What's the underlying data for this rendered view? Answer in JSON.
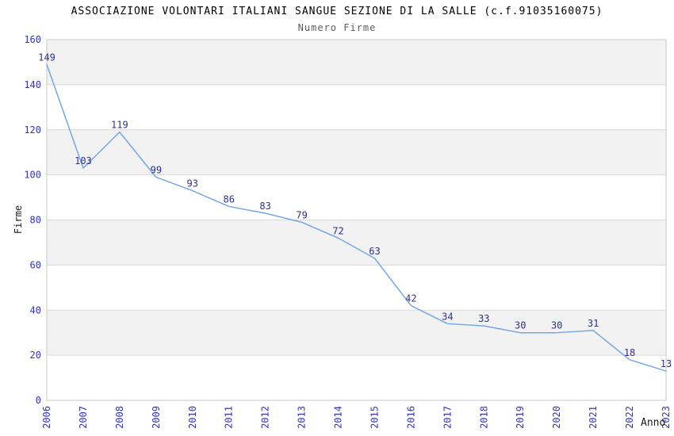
{
  "header": {
    "title": "ASSOCIAZIONE VOLONTARI ITALIANI SANGUE SEZIONE DI LA SALLE (c.f.91035160075)",
    "subtitle": "Numero Firme"
  },
  "chart_data": {
    "type": "line",
    "title": "ASSOCIAZIONE VOLONTARI ITALIANI SANGUE SEZIONE DI LA SALLE (c.f.91035160075)",
    "subtitle": "Numero Firme",
    "xlabel": "Anno",
    "ylabel": "Firme",
    "categories": [
      "2006",
      "2007",
      "2008",
      "2009",
      "2010",
      "2011",
      "2012",
      "2013",
      "2014",
      "2015",
      "2016",
      "2017",
      "2018",
      "2019",
      "2020",
      "2021",
      "2022",
      "2023"
    ],
    "values": [
      149,
      103,
      119,
      99,
      93,
      86,
      83,
      79,
      72,
      63,
      42,
      34,
      33,
      30,
      30,
      31,
      18,
      13
    ],
    "ylim": [
      0,
      160
    ],
    "ytick_step": 20,
    "yticks": [
      0,
      20,
      40,
      60,
      80,
      100,
      120,
      140,
      160
    ],
    "grid": "horizontal",
    "legend_position": "none",
    "show_point_labels": true,
    "colors": {
      "line": "#74a7e3",
      "point_label": "#30308c",
      "tick_label": "#3232c8",
      "title": "#000000",
      "subtitle": "#5d5d5d",
      "band": "#f2f2f2",
      "gridline": "#d9d9d9",
      "plot_border": "#c9c9c9",
      "axis_label": "#1a1a1a",
      "background": "#ffffff"
    }
  }
}
